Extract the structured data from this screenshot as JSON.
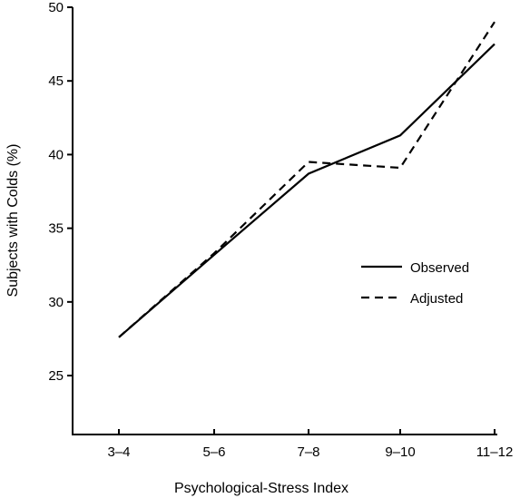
{
  "chart_data": {
    "type": "line",
    "categories": [
      "3–4",
      "5–6",
      "7–8",
      "9–10",
      "11–12"
    ],
    "series": [
      {
        "name": "Observed",
        "values": [
          27.6,
          33.2,
          38.7,
          41.3,
          47.5
        ],
        "dash": "solid"
      },
      {
        "name": "Adjusted",
        "values": [
          27.6,
          33.3,
          39.5,
          39.1,
          49.0
        ],
        "dash": "dashed"
      }
    ],
    "xlabel": "Psychological-Stress Index",
    "ylabel": "Subjects with Colds (%)",
    "ylim": [
      21,
      50
    ],
    "yticks": [
      25,
      30,
      35,
      40,
      45,
      50
    ],
    "grid": false,
    "legend_position": "right"
  }
}
